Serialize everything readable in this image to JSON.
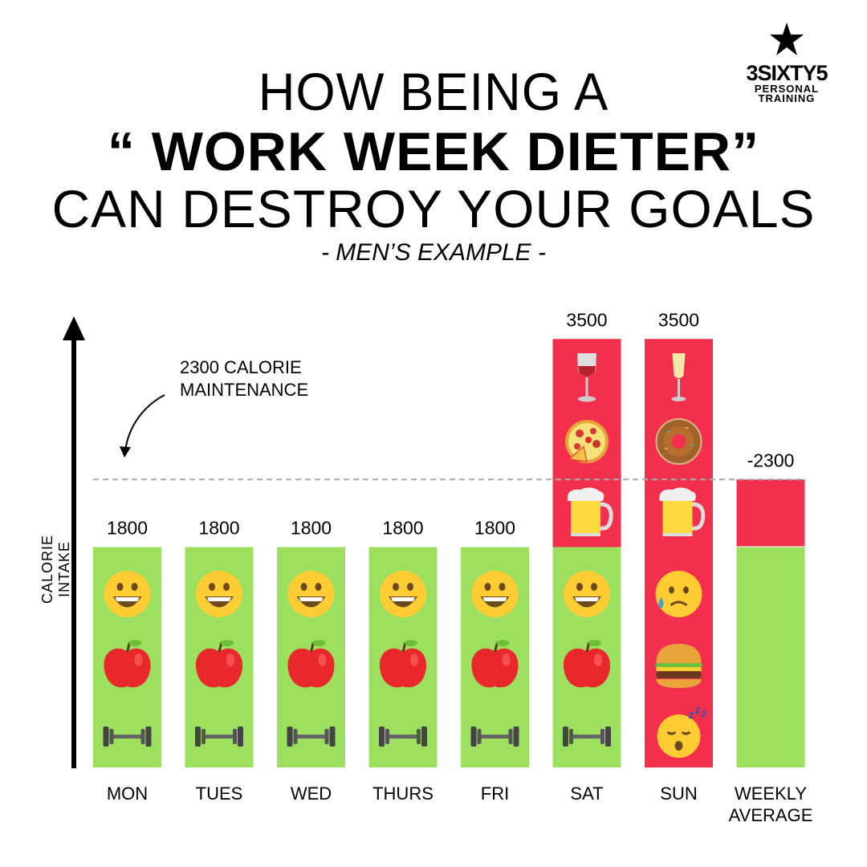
{
  "title": {
    "line1": "HOW BEING A",
    "line2": "“ WORK WEEK DIETER”",
    "line3": "CAN DESTROY YOUR GOALS",
    "subtitle": "- MEN’S EXAMPLE -"
  },
  "logo": {
    "name": "3SIXTY5",
    "tagline1": "PERSONAL",
    "tagline2": "TRAINING",
    "icon": "star-icon"
  },
  "colors": {
    "green": "#9DE05F",
    "red": "#F2304E",
    "dashed_line": "#AAAAAA"
  },
  "chart_data": {
    "type": "bar",
    "ylabel": "CALORIE INTAKE",
    "categories": [
      "MON",
      "TUES",
      "WED",
      "THURS",
      "FRI",
      "SAT",
      "SUN",
      "WEEKLY AVERAGE"
    ],
    "values": [
      1800,
      1800,
      1800,
      1800,
      1800,
      3500,
      3500,
      2300
    ],
    "value_labels": [
      "1800",
      "1800",
      "1800",
      "1800",
      "1800",
      "3500",
      "3500",
      "-2300"
    ],
    "stacks": [
      {
        "green": 1800,
        "red": 0
      },
      {
        "green": 1800,
        "red": 0
      },
      {
        "green": 1800,
        "red": 0
      },
      {
        "green": 1800,
        "red": 0
      },
      {
        "green": 1800,
        "red": 0
      },
      {
        "green": 1800,
        "red": 1700
      },
      {
        "green": 0,
        "red": 3500
      },
      {
        "green": 1800,
        "red": 500
      }
    ],
    "icons": [
      [
        "smiley-icon",
        "apple-icon",
        "dumbbell-icon"
      ],
      [
        "smiley-icon",
        "apple-icon",
        "dumbbell-icon"
      ],
      [
        "smiley-icon",
        "apple-icon",
        "dumbbell-icon"
      ],
      [
        "smiley-icon",
        "apple-icon",
        "dumbbell-icon"
      ],
      [
        "smiley-icon",
        "apple-icon",
        "dumbbell-icon"
      ],
      [
        "wine-icon",
        "pizza-icon",
        "beer-icon",
        "smiley-icon",
        "apple-icon",
        "dumbbell-icon"
      ],
      [
        "champagne-icon",
        "donut-icon",
        "beer-icon",
        "sad-sweat-icon",
        "burger-icon",
        "sleepy-icon"
      ],
      []
    ],
    "reference_line": {
      "value": 2300,
      "label_line1": "2300 CALORIE",
      "label_line2": "MAINTENANCE",
      "style": "dashed"
    },
    "ylim": [
      0,
      3500
    ],
    "grid": false
  }
}
